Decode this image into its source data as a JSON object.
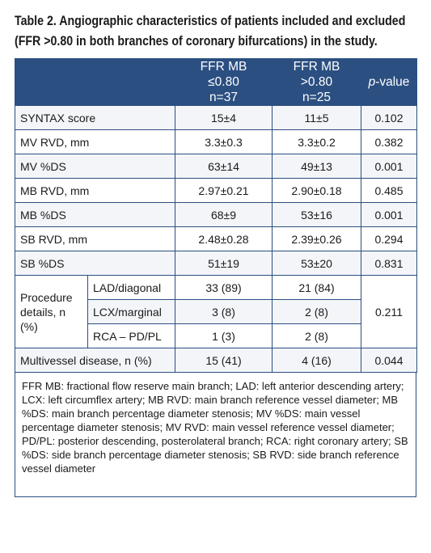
{
  "caption": "Table 2. Angiographic characteristics of patients included and excluded (FFR >0.80 in both branches of coronary bifurcations) in the study.",
  "header": {
    "col1_line1": "FFR MB",
    "col1_line2": "≤0.80",
    "col1_line3": "n=37",
    "col2_line1": "FFR MB",
    "col2_line2": ">0.80",
    "col2_line3": "n=25",
    "pvalue_italic": "p",
    "pvalue_rest": "-value"
  },
  "rows": [
    {
      "label": "SYNTAX score",
      "a": "15±4",
      "b": "11±5",
      "p": "0.102"
    },
    {
      "label": "MV RVD, mm",
      "a": "3.3±0.3",
      "b": "3.3±0.2",
      "p": "0.382"
    },
    {
      "label": "MV %DS",
      "a": "63±14",
      "b": "49±13",
      "p": "0.001"
    },
    {
      "label": "MB RVD, mm",
      "a": "2.97±0.21",
      "b": "2.90±0.18",
      "p": "0.485"
    },
    {
      "label": "MB %DS",
      "a": "68±9",
      "b": "53±16",
      "p": "0.001"
    },
    {
      "label": "SB RVD, mm",
      "a": "2.48±0.28",
      "b": "2.39±0.26",
      "p": "0.294"
    },
    {
      "label": "SB %DS",
      "a": "51±19",
      "b": "53±20",
      "p": "0.831"
    }
  ],
  "procedure": {
    "label": "Procedure details, n (%)",
    "p": "0.211",
    "subrows": [
      {
        "label": "LAD/diagonal",
        "a": "33 (89)",
        "b": "21 (84)"
      },
      {
        "label": "LCX/marginal",
        "a": "3 (8)",
        "b": "2 (8)"
      },
      {
        "label": "RCA – PD/PL",
        "a": "1 (3)",
        "b": "2 (8)"
      }
    ]
  },
  "multivessel": {
    "label": "Multivessel disease, n (%)",
    "a": "15 (41)",
    "b": "4 (16)",
    "p": "0.044"
  },
  "footnote": "FFR MB: fractional flow reserve main branch; LAD: left anterior descending artery; LCX: left circumflex artery; MB RVD: main branch reference vessel diameter; MB %DS: main branch percentage diameter stenosis; MV %DS: main vessel percentage diameter stenosis; MV RVD: main vessel reference vessel diameter; PD/PL: posterior descending, posterolateral branch; RCA: right coronary artery; SB %DS: side branch percentage diameter stenosis; SB RVD: side branch reference vessel diameter",
  "colors": {
    "header_bg": "#2b4f81",
    "row_alt": "#f3f5f8"
  }
}
